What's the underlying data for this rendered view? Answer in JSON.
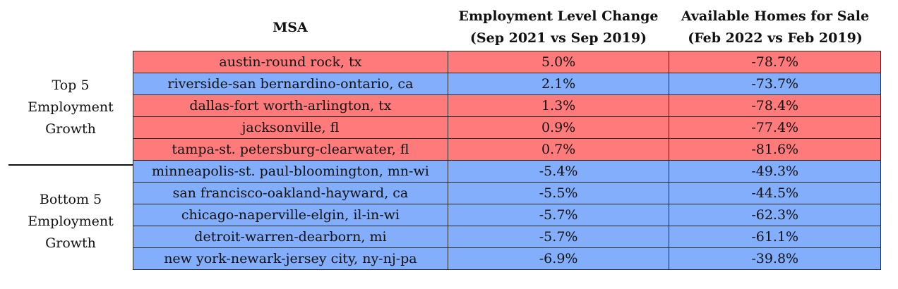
{
  "headers": {
    "msa": "MSA",
    "employment": "Employment Level Change (Sep 2021 vs Sep 2019)",
    "homes": "Available Homes for Sale (Feb 2022 vs Feb 2019)"
  },
  "groups": {
    "top": "Top 5 Employment Growth",
    "bottom": "Bottom 5 Employment Growth"
  },
  "rows": [
    {
      "msa": "austin-round rock, tx",
      "employment": "5.0%",
      "homes": "-78.7%",
      "color": "#ff7b7b"
    },
    {
      "msa": "riverside-san bernardino-ontario, ca",
      "employment": "2.1%",
      "homes": "-73.7%",
      "color": "#82aefb"
    },
    {
      "msa": "dallas-fort worth-arlington, tx",
      "employment": "1.3%",
      "homes": "-78.4%",
      "color": "#ff7b7b"
    },
    {
      "msa": "jacksonville, fl",
      "employment": "0.9%",
      "homes": "-77.4%",
      "color": "#ff7b7b"
    },
    {
      "msa": "tampa-st. petersburg-clearwater, fl",
      "employment": "0.7%",
      "homes": "-81.6%",
      "color": "#ff7b7b"
    },
    {
      "msa": "minneapolis-st. paul-bloomington, mn-wi",
      "employment": "-5.4%",
      "homes": "-49.3%",
      "color": "#82aefb"
    },
    {
      "msa": "san francisco-oakland-hayward, ca",
      "employment": "-5.5%",
      "homes": "-44.5%",
      "color": "#82aefb"
    },
    {
      "msa": "chicago-naperville-elgin, il-in-wi",
      "employment": "-5.7%",
      "homes": "-62.3%",
      "color": "#82aefb"
    },
    {
      "msa": "detroit-warren-dearborn, mi",
      "employment": "-5.7%",
      "homes": "-61.1%",
      "color": "#82aefb"
    },
    {
      "msa": "new york-newark-jersey city, ny-nj-pa",
      "employment": "-6.9%",
      "homes": "-39.8%",
      "color": "#82aefb"
    }
  ]
}
